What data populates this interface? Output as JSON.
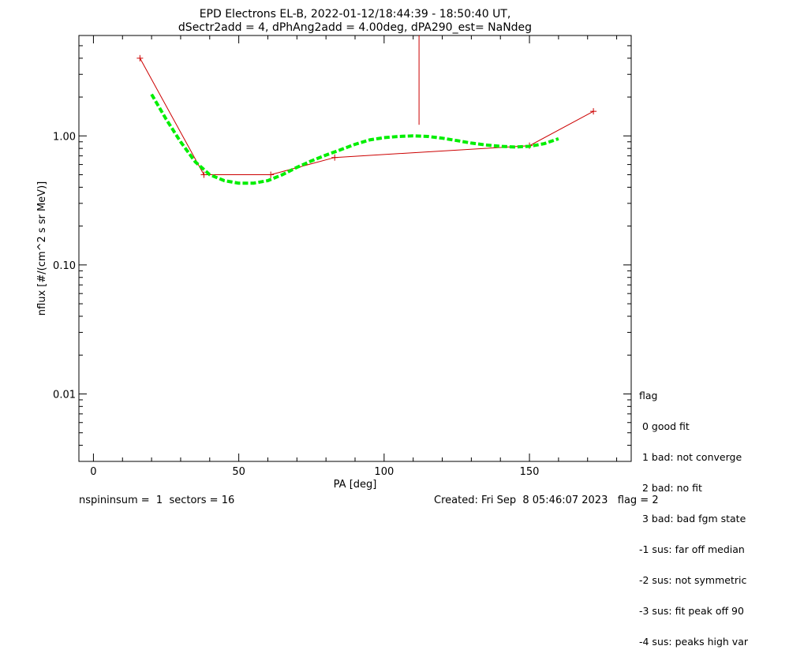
{
  "chart_data": {
    "type": "line",
    "title": [
      "EPD Electrons EL-B, 2022-01-12/18:44:39 - 18:50:40 UT,",
      "dSectr2add = 4, dPhAng2add = 4.00deg, dPA290_est=   NaNdeg"
    ],
    "xlabel": "PA [deg]",
    "ylabel": "nflux [#/(cm^2 s sr MeV)]",
    "xlim": [
      -5,
      185
    ],
    "ylim": [
      0.003,
      6.0
    ],
    "yscale": "log",
    "x_ticks": [
      0,
      50,
      100,
      150
    ],
    "x_tick_labels": [
      "0",
      "50",
      "100",
      "150"
    ],
    "y_ticks": [
      0.01,
      0.1,
      1.0
    ],
    "y_tick_labels": [
      "0.01",
      "0.10",
      "1.00"
    ],
    "grid": false,
    "series": [
      {
        "style": "line+plus",
        "color": "#cc0000",
        "x": [
          16,
          38,
          61,
          83,
          150,
          172
        ],
        "y": [
          4.0,
          0.5,
          0.5,
          0.68,
          0.84,
          1.55
        ]
      },
      {
        "style": "vertical-line",
        "color": "#cc0000",
        "x": [
          112,
          112
        ],
        "y": [
          1.22,
          6.0
        ]
      },
      {
        "style": "dashed-fit",
        "color": "#00ee00",
        "x": [
          20,
          25,
          30,
          35,
          40,
          45,
          50,
          55,
          60,
          65,
          70,
          75,
          80,
          85,
          90,
          95,
          100,
          105,
          110,
          115,
          120,
          125,
          130,
          135,
          140,
          145,
          150,
          155,
          160
        ],
        "y": [
          2.1,
          1.35,
          0.9,
          0.63,
          0.5,
          0.45,
          0.43,
          0.43,
          0.45,
          0.5,
          0.57,
          0.64,
          0.71,
          0.78,
          0.86,
          0.93,
          0.97,
          0.99,
          1.0,
          0.99,
          0.96,
          0.92,
          0.88,
          0.85,
          0.83,
          0.82,
          0.83,
          0.87,
          0.95
        ]
      }
    ]
  },
  "legend": {
    "title": "flag",
    "items": [
      " 0 good fit",
      " 1 bad: not converge",
      " 2 bad: no fit",
      " 3 bad: bad fgm state",
      "-1 sus: far off median",
      "-2 sus: not symmetric",
      "-3 sus: fit peak off 90",
      "-4 sus: peaks high var"
    ]
  },
  "footer": {
    "left": "nspininsum =  1  sectors = 16",
    "right": "Created: Fri Sep  8 05:46:07 2023   flag = 2"
  }
}
